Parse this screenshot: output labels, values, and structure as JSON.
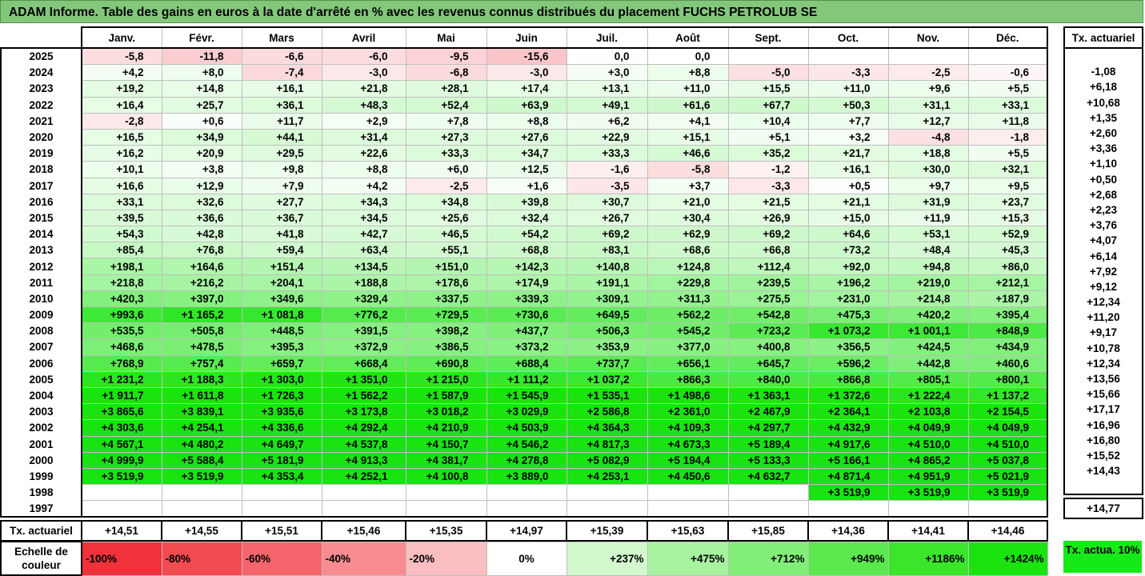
{
  "title": "ADAM Informe. Table des gains en euros à la date d'arrêté en % avec les revenus connus distribués du placement FUCHS PETROLUB SE",
  "months": [
    "Janv.",
    "Févr.",
    "Mars",
    "Avril",
    "Mai",
    "Juin",
    "Juil.",
    "Août",
    "Sept.",
    "Oct.",
    "Nov.",
    "Déc."
  ],
  "rate_header": "Tx. actuariel",
  "rows": [
    {
      "year": "2025",
      "values": [
        "-5,8",
        "-11,8",
        "-6,6",
        "-6,0",
        "-9,5",
        "-15,6",
        "0,0",
        "0,0",
        "",
        "",
        "",
        ""
      ],
      "rate": ""
    },
    {
      "year": "2024",
      "values": [
        "+4,2",
        "+8,0",
        "-7,4",
        "-3,0",
        "-6,8",
        "-3,0",
        "+3,0",
        "+8,8",
        "-5,0",
        "-3,3",
        "-2,5",
        "-0,6"
      ],
      "rate": "-1,08"
    },
    {
      "year": "2023",
      "values": [
        "+19,2",
        "+14,8",
        "+16,1",
        "+21,8",
        "+28,1",
        "+17,4",
        "+13,1",
        "+11,0",
        "+15,5",
        "+11,0",
        "+9,6",
        "+5,5"
      ],
      "rate": "+6,18"
    },
    {
      "year": "2022",
      "values": [
        "+16,4",
        "+25,7",
        "+36,1",
        "+48,3",
        "+52,4",
        "+63,9",
        "+49,1",
        "+61,6",
        "+67,7",
        "+50,3",
        "+31,1",
        "+33,1"
      ],
      "rate": "+10,68"
    },
    {
      "year": "2021",
      "values": [
        "-2,8",
        "+0,6",
        "+11,7",
        "+2,9",
        "+7,8",
        "+8,8",
        "+6,2",
        "+4,1",
        "+10,4",
        "+7,7",
        "+12,7",
        "+11,8"
      ],
      "rate": "+1,35"
    },
    {
      "year": "2020",
      "values": [
        "+16,5",
        "+34,9",
        "+44,1",
        "+31,4",
        "+27,3",
        "+27,6",
        "+22,9",
        "+15,1",
        "+5,1",
        "+3,2",
        "-4,8",
        "-1,8"
      ],
      "rate": "+2,60"
    },
    {
      "year": "2019",
      "values": [
        "+16,2",
        "+20,9",
        "+29,5",
        "+22,6",
        "+33,3",
        "+34,7",
        "+33,3",
        "+46,6",
        "+35,2",
        "+21,7",
        "+18,8",
        "+5,5"
      ],
      "rate": "+3,36"
    },
    {
      "year": "2018",
      "values": [
        "+10,1",
        "+3,8",
        "+9,8",
        "+8,8",
        "+6,0",
        "+12,5",
        "-1,6",
        "-5,8",
        "-1,2",
        "+16,1",
        "+30,0",
        "+32,1"
      ],
      "rate": "+1,10"
    },
    {
      "year": "2017",
      "values": [
        "+16,6",
        "+12,9",
        "+7,9",
        "+4,2",
        "-2,5",
        "+1,6",
        "-3,5",
        "+3,7",
        "-3,3",
        "+0,5",
        "+9,7",
        "+9,5"
      ],
      "rate": "+0,50"
    },
    {
      "year": "2016",
      "values": [
        "+33,1",
        "+32,6",
        "+27,7",
        "+34,3",
        "+34,8",
        "+39,8",
        "+30,7",
        "+21,0",
        "+21,5",
        "+21,1",
        "+31,9",
        "+23,7"
      ],
      "rate": "+2,68"
    },
    {
      "year": "2015",
      "values": [
        "+39,5",
        "+36,6",
        "+36,7",
        "+34,5",
        "+25,6",
        "+32,4",
        "+26,7",
        "+30,4",
        "+26,9",
        "+15,0",
        "+11,9",
        "+15,3"
      ],
      "rate": "+2,23"
    },
    {
      "year": "2014",
      "values": [
        "+54,3",
        "+42,8",
        "+41,8",
        "+42,7",
        "+46,5",
        "+54,2",
        "+69,2",
        "+62,9",
        "+69,2",
        "+64,6",
        "+53,1",
        "+52,9"
      ],
      "rate": "+3,76"
    },
    {
      "year": "2013",
      "values": [
        "+85,4",
        "+76,8",
        "+59,4",
        "+63,4",
        "+55,1",
        "+68,8",
        "+83,1",
        "+68,6",
        "+66,8",
        "+73,2",
        "+48,4",
        "+45,3"
      ],
      "rate": "+4,07"
    },
    {
      "year": "2012",
      "values": [
        "+198,1",
        "+164,6",
        "+151,4",
        "+134,5",
        "+151,0",
        "+142,3",
        "+140,8",
        "+124,8",
        "+112,4",
        "+92,0",
        "+94,8",
        "+86,0"
      ],
      "rate": "+6,14"
    },
    {
      "year": "2011",
      "values": [
        "+218,8",
        "+216,2",
        "+204,1",
        "+188,8",
        "+178,6",
        "+174,9",
        "+191,1",
        "+229,8",
        "+239,5",
        "+196,2",
        "+219,0",
        "+212,1"
      ],
      "rate": "+7,92"
    },
    {
      "year": "2010",
      "values": [
        "+420,3",
        "+397,0",
        "+349,6",
        "+329,4",
        "+337,5",
        "+339,3",
        "+309,1",
        "+311,3",
        "+275,5",
        "+231,0",
        "+214,8",
        "+187,9"
      ],
      "rate": "+9,12"
    },
    {
      "year": "2009",
      "values": [
        "+993,6",
        "+1 165,2",
        "+1 081,8",
        "+776,2",
        "+729,5",
        "+730,6",
        "+649,5",
        "+562,2",
        "+542,8",
        "+475,3",
        "+420,2",
        "+395,4"
      ],
      "rate": "+12,34"
    },
    {
      "year": "2008",
      "values": [
        "+535,5",
        "+505,8",
        "+448,5",
        "+391,5",
        "+398,2",
        "+437,7",
        "+506,3",
        "+545,2",
        "+723,2",
        "+1 073,2",
        "+1 001,1",
        "+848,9"
      ],
      "rate": "+11,20"
    },
    {
      "year": "2007",
      "values": [
        "+468,6",
        "+478,5",
        "+395,3",
        "+372,9",
        "+386,5",
        "+373,2",
        "+353,9",
        "+377,0",
        "+400,8",
        "+356,5",
        "+424,5",
        "+434,9"
      ],
      "rate": "+9,17"
    },
    {
      "year": "2006",
      "values": [
        "+768,9",
        "+757,4",
        "+659,7",
        "+668,4",
        "+690,8",
        "+688,4",
        "+737,7",
        "+656,1",
        "+645,7",
        "+596,2",
        "+442,8",
        "+460,6"
      ],
      "rate": "+10,78"
    },
    {
      "year": "2005",
      "values": [
        "+1 231,2",
        "+1 188,3",
        "+1 303,0",
        "+1 351,0",
        "+1 215,0",
        "+1 111,2",
        "+1 037,2",
        "+866,3",
        "+840,0",
        "+866,8",
        "+805,1",
        "+800,1"
      ],
      "rate": "+12,34"
    },
    {
      "year": "2004",
      "values": [
        "+1 911,7",
        "+1 611,8",
        "+1 726,3",
        "+1 562,2",
        "+1 587,9",
        "+1 545,9",
        "+1 535,1",
        "+1 498,6",
        "+1 363,1",
        "+1 372,6",
        "+1 222,4",
        "+1 137,2"
      ],
      "rate": "+13,56"
    },
    {
      "year": "2003",
      "values": [
        "+3 865,6",
        "+3 839,1",
        "+3 935,6",
        "+3 173,8",
        "+3 018,2",
        "+3 029,9",
        "+2 586,8",
        "+2 361,0",
        "+2 467,9",
        "+2 364,1",
        "+2 103,8",
        "+2 154,5"
      ],
      "rate": "+15,66"
    },
    {
      "year": "2002",
      "values": [
        "+4 303,6",
        "+4 254,1",
        "+4 336,6",
        "+4 292,4",
        "+4 210,9",
        "+4 503,9",
        "+4 364,3",
        "+4 109,3",
        "+4 297,7",
        "+4 432,9",
        "+4 049,9",
        "+4 049,9"
      ],
      "rate": "+17,17"
    },
    {
      "year": "2001",
      "values": [
        "+4 567,1",
        "+4 480,2",
        "+4 649,7",
        "+4 537,8",
        "+4 150,7",
        "+4 546,2",
        "+4 817,3",
        "+4 673,3",
        "+5 189,4",
        "+4 917,6",
        "+4 510,0",
        "+4 510,0"
      ],
      "rate": "+16,96"
    },
    {
      "year": "2000",
      "values": [
        "+4 999,9",
        "+5 588,4",
        "+5 181,9",
        "+4 913,3",
        "+4 381,7",
        "+4 278,8",
        "+5 082,9",
        "+5 194,4",
        "+5 133,3",
        "+5 166,1",
        "+4 865,2",
        "+5 037,8"
      ],
      "rate": "+16,80"
    },
    {
      "year": "1999",
      "values": [
        "+3 519,9",
        "+3 519,9",
        "+4 353,4",
        "+4 252,1",
        "+4 100,8",
        "+3 889,0",
        "+4 253,1",
        "+4 450,6",
        "+4 632,7",
        "+4 871,4",
        "+4 951,9",
        "+5 021,9"
      ],
      "rate": "+15,52"
    },
    {
      "year": "1998",
      "values": [
        "",
        "",
        "",
        "",
        "",
        "",
        "",
        "",
        "",
        "+3 519,9",
        "+3 519,9",
        "+3 519,9"
      ],
      "rate": "+14,43"
    },
    {
      "year": "1997",
      "values": [
        "",
        "",
        "",
        "",
        "",
        "",
        "",
        "",
        "",
        "",
        "",
        ""
      ],
      "rate": ""
    }
  ],
  "footer": {
    "label": "Tx. actuariel",
    "values": [
      "+14,51",
      "+14,55",
      "+15,51",
      "+15,46",
      "+15,35",
      "+14,97",
      "+15,39",
      "+15,63",
      "+15,85",
      "+14,36",
      "+14,41",
      "+14,46"
    ],
    "rate": "+14,77"
  },
  "scale": {
    "label": "Echelle de couleur",
    "items": [
      "-100%",
      "-80%",
      "-60%",
      "-40%",
      "-20%",
      "0%",
      "+237%",
      "+475%",
      "+712%",
      "+949%",
      "+1186%",
      "+1424%"
    ],
    "colors": [
      "#f0323a",
      "#f24a51",
      "#f5656b",
      "#f88c90",
      "#fbbec0",
      "#ffffff",
      "#d2f8cd",
      "#a7f39f",
      "#82ee78",
      "#5be84f",
      "#3ae52c",
      "#1ae310"
    ],
    "box_text": "Tx. actua. 10%",
    "box_color": "#16ea16"
  }
}
